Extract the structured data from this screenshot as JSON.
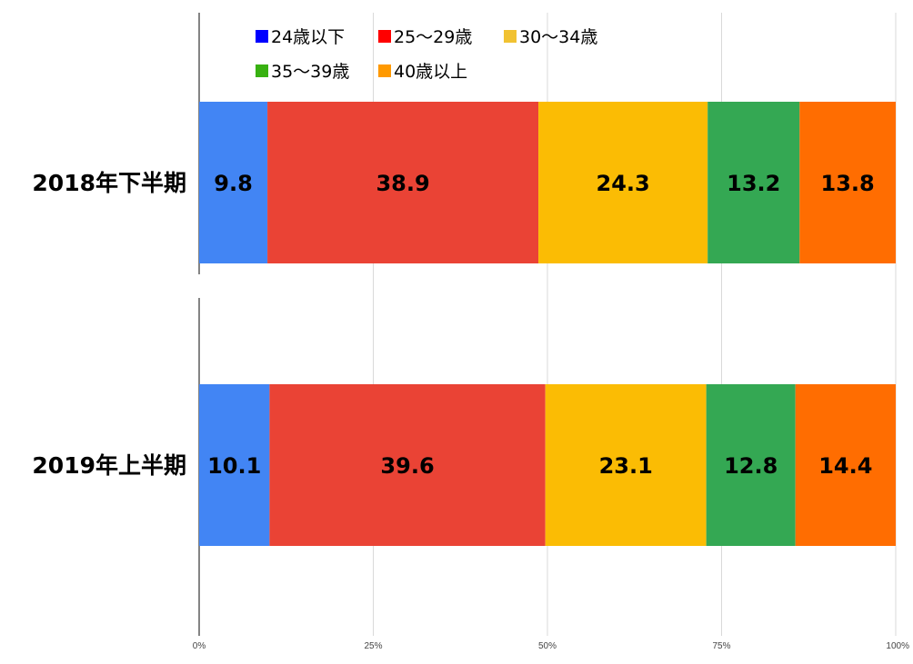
{
  "chart_data": {
    "type": "bar",
    "orientation": "horizontal",
    "stacked": true,
    "categories": [
      "2018年下半期",
      "2019年上半期"
    ],
    "series": [
      {
        "name": "24歳以下",
        "values": [
          9.8,
          10.1
        ],
        "color": "#4285f4",
        "legend_color": "#0000ff"
      },
      {
        "name": "25〜29歳",
        "values": [
          38.9,
          39.6
        ],
        "color": "#ea4335",
        "legend_color": "#ff0000"
      },
      {
        "name": "30〜34歳",
        "values": [
          24.3,
          23.1
        ],
        "color": "#fbbc04",
        "legend_color": "#f1c232"
      },
      {
        "name": "35〜39歳",
        "values": [
          13.2,
          12.8
        ],
        "color": "#34a853",
        "legend_color": "#38b111"
      },
      {
        "name": "40歳以上",
        "values": [
          13.8,
          14.4
        ],
        "color": "#ff6d01",
        "legend_color": "#ff9900"
      }
    ],
    "xlim": [
      0,
      100
    ],
    "x_ticks": [
      "0%",
      "25%",
      "50%",
      "75%",
      "100%"
    ],
    "grid": true,
    "legend_position": "top",
    "title": "",
    "xlabel": "",
    "ylabel": ""
  }
}
